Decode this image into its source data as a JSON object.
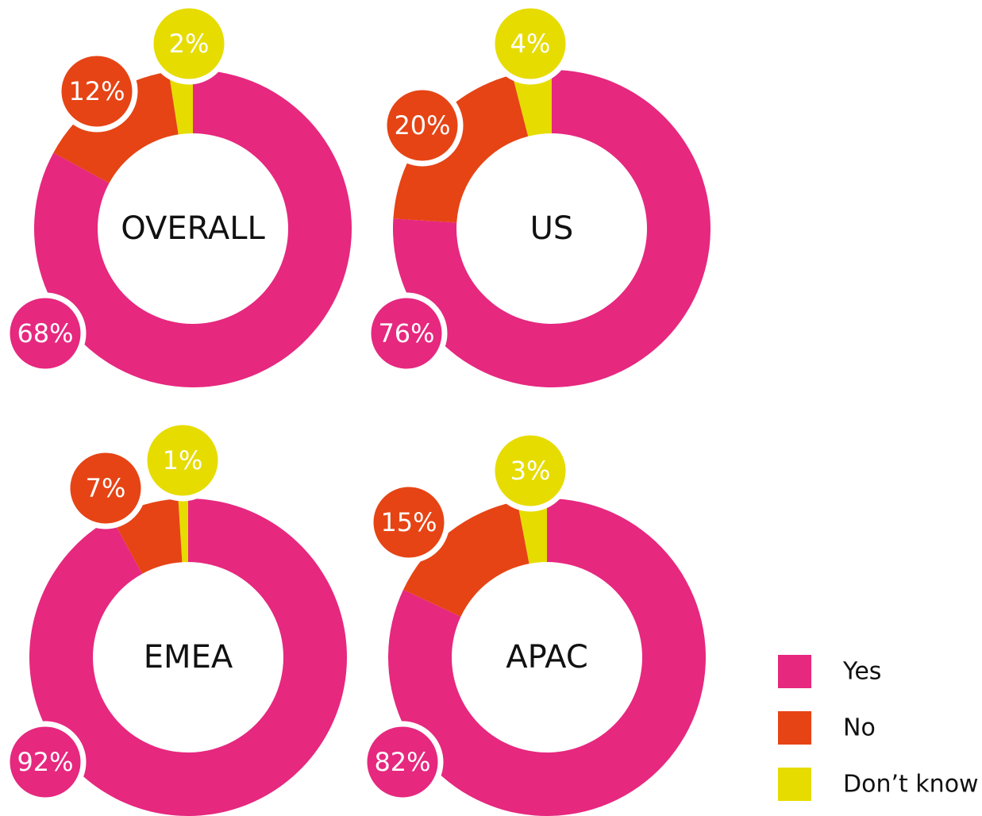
{
  "chart_data": [
    {
      "type": "pie",
      "title": "OVERALL",
      "categories": [
        "Yes",
        "No",
        "Don’t know"
      ],
      "values": [
        68,
        12,
        2
      ],
      "value_labels": [
        "68%",
        "12%",
        "2%"
      ],
      "colors": [
        "#e6287f",
        "#e64415",
        "#e6dc00"
      ]
    },
    {
      "type": "pie",
      "title": "US",
      "categories": [
        "Yes",
        "No",
        "Don’t know"
      ],
      "values": [
        76,
        20,
        4
      ],
      "value_labels": [
        "76%",
        "20%",
        "4%"
      ],
      "colors": [
        "#e6287f",
        "#e64415",
        "#e6dc00"
      ]
    },
    {
      "type": "pie",
      "title": "EMEA",
      "categories": [
        "Yes",
        "No",
        "Don’t know"
      ],
      "values": [
        92,
        7,
        1
      ],
      "value_labels": [
        "92%",
        "7%",
        "1%"
      ],
      "colors": [
        "#e6287f",
        "#e64415",
        "#e6dc00"
      ]
    },
    {
      "type": "pie",
      "title": "APAC",
      "categories": [
        "Yes",
        "No",
        "Don’t know"
      ],
      "values": [
        82,
        15,
        3
      ],
      "value_labels": [
        "82%",
        "15%",
        "3%"
      ],
      "colors": [
        "#e6287f",
        "#e64415",
        "#e6dc00"
      ]
    }
  ]
}
